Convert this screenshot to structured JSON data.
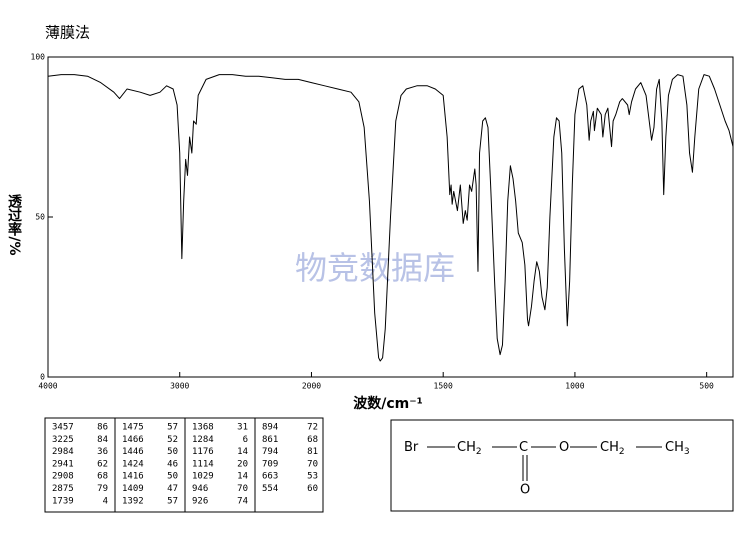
{
  "chart_data": {
    "type": "line",
    "title": "薄膜法",
    "x_label": "波数/cm⁻¹",
    "y_label": "透过率/%",
    "watermark": "物竞数据库",
    "xlim": [
      4000,
      400
    ],
    "x_break": 2000,
    "xticks": [
      4000,
      3000,
      2000,
      1500,
      1000,
      500
    ],
    "ylim": [
      0,
      100
    ],
    "yticks": [
      0,
      50,
      100
    ],
    "grid": false,
    "series": [
      {
        "name": "spectrum",
        "color": "#000000",
        "x": [
          4000,
          3900,
          3800,
          3700,
          3600,
          3500,
          3457,
          3400,
          3300,
          3225,
          3150,
          3100,
          3050,
          3020,
          3000,
          2984,
          2970,
          2955,
          2941,
          2925,
          2908,
          2895,
          2875,
          2860,
          2800,
          2700,
          2600,
          2500,
          2400,
          2300,
          2200,
          2100,
          2000,
          1950,
          1900,
          1850,
          1820,
          1800,
          1780,
          1760,
          1745,
          1739,
          1730,
          1720,
          1700,
          1680,
          1660,
          1640,
          1600,
          1560,
          1530,
          1500,
          1485,
          1475,
          1470,
          1466,
          1460,
          1446,
          1435,
          1424,
          1416,
          1409,
          1400,
          1392,
          1380,
          1375,
          1368,
          1362,
          1350,
          1340,
          1330,
          1320,
          1305,
          1295,
          1284,
          1275,
          1265,
          1255,
          1245,
          1235,
          1225,
          1215,
          1200,
          1190,
          1180,
          1176,
          1165,
          1155,
          1145,
          1135,
          1125,
          1114,
          1105,
          1095,
          1080,
          1070,
          1060,
          1050,
          1040,
          1029,
          1020,
          1010,
          1000,
          985,
          970,
          955,
          946,
          940,
          930,
          926,
          915,
          900,
          894,
          885,
          875,
          861,
          855,
          845,
          830,
          820,
          800,
          794,
          785,
          770,
          750,
          730,
          715,
          709,
          700,
          690,
          680,
          670,
          663,
          655,
          645,
          630,
          610,
          590,
          575,
          565,
          554,
          545,
          530,
          510,
          490,
          470,
          450,
          430,
          415,
          400
        ],
        "values": [
          94,
          94.5,
          94.5,
          94,
          92,
          89,
          87,
          90,
          89,
          88,
          89,
          91,
          90,
          85,
          70,
          37,
          55,
          68,
          63,
          75,
          70,
          80,
          79,
          88,
          93,
          94.5,
          94.5,
          94,
          94,
          93.5,
          93,
          93,
          92,
          91,
          90,
          89,
          86,
          78,
          55,
          20,
          6,
          5,
          6,
          15,
          50,
          80,
          88,
          90,
          91,
          91,
          90,
          88,
          75,
          57,
          60,
          54,
          58,
          52,
          60,
          48,
          52,
          49,
          60,
          58,
          65,
          60,
          33,
          70,
          80,
          81,
          78,
          60,
          30,
          12,
          7,
          10,
          30,
          55,
          66,
          62,
          55,
          45,
          42,
          35,
          18,
          16,
          22,
          30,
          36,
          33,
          25,
          21,
          28,
          50,
          75,
          81,
          80,
          70,
          40,
          16,
          30,
          60,
          82,
          90,
          91,
          85,
          74,
          80,
          83,
          77,
          84,
          82,
          75,
          82,
          84,
          72,
          80,
          82,
          86,
          87,
          85,
          82,
          86,
          90,
          92,
          88,
          78,
          74,
          78,
          90,
          93,
          80,
          57,
          75,
          88,
          93,
          94.5,
          94,
          85,
          70,
          64,
          75,
          90,
          94.5,
          94,
          90,
          85,
          80,
          77,
          72
        ]
      }
    ]
  },
  "peak_table": [
    [
      [
        "3457",
        "86"
      ],
      [
        "3225",
        "84"
      ],
      [
        "2984",
        "36"
      ],
      [
        "2941",
        "62"
      ],
      [
        "2908",
        "68"
      ],
      [
        "2875",
        "79"
      ],
      [
        "1739",
        "4"
      ]
    ],
    [
      [
        "1475",
        "57"
      ],
      [
        "1466",
        "52"
      ],
      [
        "1446",
        "50"
      ],
      [
        "1424",
        "46"
      ],
      [
        "1416",
        "50"
      ],
      [
        "1409",
        "47"
      ],
      [
        "1392",
        "57"
      ]
    ],
    [
      [
        "1368",
        "31"
      ],
      [
        "1284",
        "6"
      ],
      [
        "1176",
        "14"
      ],
      [
        "1114",
        "20"
      ],
      [
        "1029",
        "14"
      ],
      [
        "946",
        "70"
      ],
      [
        "926",
        "74"
      ]
    ],
    [
      [
        "894",
        "72"
      ],
      [
        "861",
        "68"
      ],
      [
        "794",
        "81"
      ],
      [
        "709",
        "70"
      ],
      [
        "663",
        "53"
      ],
      [
        "554",
        "60"
      ]
    ]
  ],
  "structure": {
    "chain": [
      {
        "label": "Br"
      },
      {
        "label": "CH",
        "sub": "2"
      },
      {
        "label": "C"
      },
      {
        "label": "O"
      },
      {
        "label": "CH",
        "sub": "2"
      },
      {
        "label": "CH",
        "sub": "3"
      }
    ],
    "carbonyl_o": "O"
  }
}
